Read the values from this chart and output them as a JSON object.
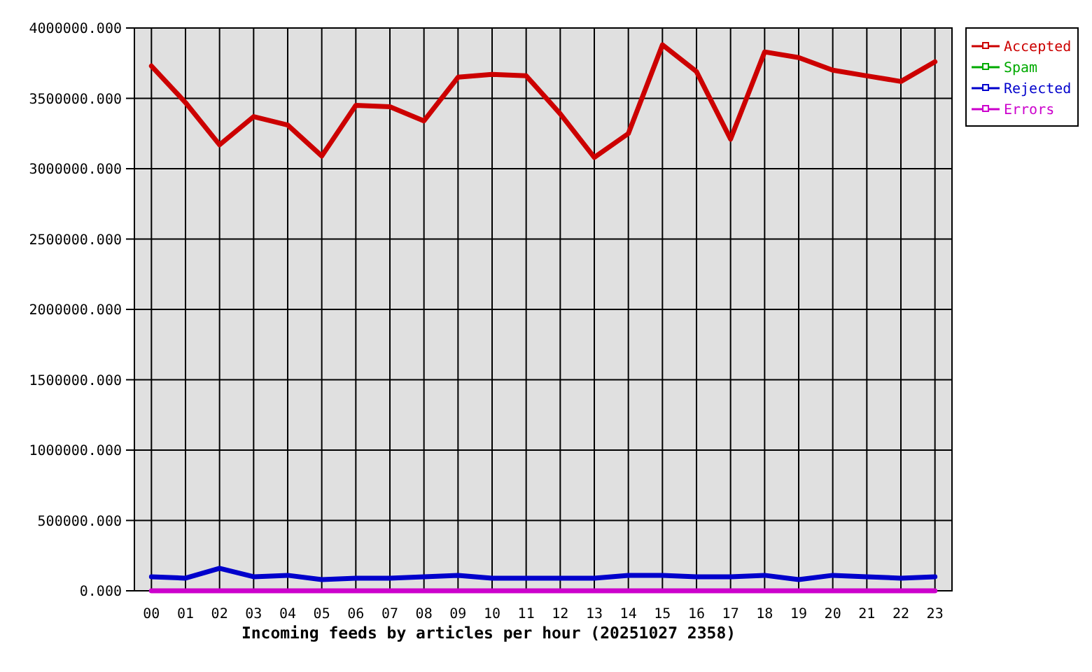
{
  "chart_data": {
    "type": "line",
    "xlabel": "Incoming feeds by articles per hour (20251027 2358)",
    "categories": [
      "00",
      "01",
      "02",
      "03",
      "04",
      "05",
      "06",
      "07",
      "08",
      "09",
      "10",
      "11",
      "12",
      "13",
      "14",
      "15",
      "16",
      "17",
      "18",
      "19",
      "20",
      "21",
      "22",
      "23"
    ],
    "series": [
      {
        "name": "Accepted",
        "color": "#cc0000",
        "values": [
          3730000,
          3470000,
          3170000,
          3370000,
          3310000,
          3090000,
          3450000,
          3440000,
          3340000,
          3650000,
          3670000,
          3660000,
          3390000,
          3080000,
          3250000,
          3880000,
          3690000,
          3210000,
          3830000,
          3790000,
          3700000,
          3660000,
          3620000,
          3760000
        ]
      },
      {
        "name": "Spam",
        "color": "#00aa00",
        "values": [
          null,
          null,
          null,
          null,
          null,
          null,
          null,
          null,
          null,
          null,
          null,
          null,
          null,
          null,
          null,
          null,
          null,
          null,
          null,
          null,
          null,
          null,
          null,
          null
        ]
      },
      {
        "name": "Rejected",
        "color": "#0000cc",
        "values": [
          100000,
          90000,
          160000,
          100000,
          110000,
          80000,
          90000,
          90000,
          100000,
          110000,
          90000,
          90000,
          90000,
          90000,
          110000,
          110000,
          100000,
          100000,
          110000,
          80000,
          110000,
          100000,
          90000,
          100000
        ]
      },
      {
        "name": "Errors",
        "color": "#cc00cc",
        "values": [
          0,
          0,
          0,
          0,
          0,
          0,
          0,
          0,
          0,
          0,
          0,
          0,
          0,
          0,
          0,
          0,
          0,
          0,
          0,
          0,
          0,
          0,
          0,
          0
        ]
      }
    ],
    "ylim": [
      0,
      4000000
    ],
    "yticks": [
      {
        "value": 0,
        "label": "0.000"
      },
      {
        "value": 500000,
        "label": "500000.000"
      },
      {
        "value": 1000000,
        "label": "1000000.000"
      },
      {
        "value": 1500000,
        "label": "1500000.000"
      },
      {
        "value": 2000000,
        "label": "2000000.000"
      },
      {
        "value": 2500000,
        "label": "2500000.000"
      },
      {
        "value": 3000000,
        "label": "3000000.000"
      },
      {
        "value": 3500000,
        "label": "3500000.000"
      },
      {
        "value": 4000000,
        "label": "4000000.000"
      }
    ],
    "grid": true,
    "legend": "top right"
  }
}
